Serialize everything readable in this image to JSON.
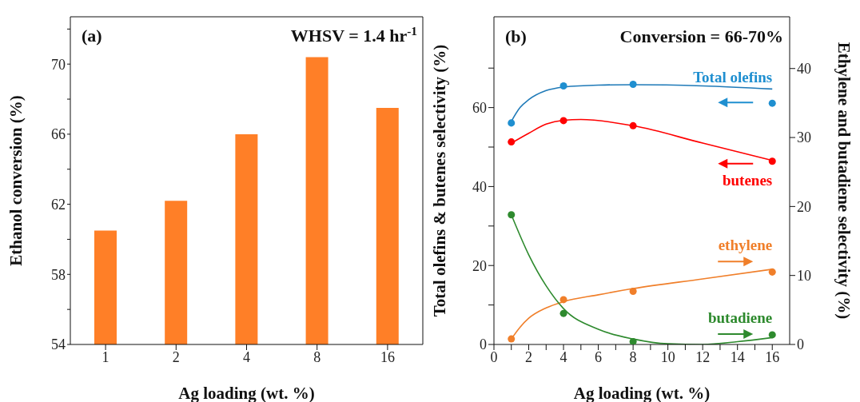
{
  "chart_data": [
    {
      "type": "bar",
      "annotations": [
        "(a)",
        "WHSV = 1.4 hr$^{-1}$"
      ],
      "xlabel": "Ag loading (wt. %)",
      "ylabel": "Ethanol conversion (%)",
      "categories": [
        "1",
        "2",
        "4",
        "8",
        "16"
      ],
      "values": [
        60.5,
        62.2,
        66.0,
        70.4,
        67.5
      ],
      "color": "#ff7f27",
      "ylim": [
        54,
        72.7
      ],
      "yticks": [
        54,
        {
          "value": 56,
          "label": null
        },
        58,
        {
          "value": 60,
          "label": null
        },
        62,
        {
          "value": 64,
          "label": null
        },
        66,
        {
          "value": 68,
          "label": null
        },
        70,
        {
          "value": 72,
          "label": null
        }
      ]
    },
    {
      "type": "scatter",
      "annotations": [
        "(b)",
        "Conversion = 66-70%"
      ],
      "xlabel": "Ag loading (wt. %)",
      "ylabel": "Total olefins & butenes selectivity (%)",
      "y2label": "Ethylene and butadiene selectivity (%)",
      "xlim": [
        0,
        17
      ],
      "xticks": [
        0,
        {
          "value": 1,
          "label": null
        },
        2,
        {
          "value": 3,
          "label": null
        },
        4,
        {
          "value": 5,
          "label": null
        },
        6,
        {
          "value": 7,
          "label": null
        },
        8,
        {
          "value": 9,
          "label": null
        },
        10,
        {
          "value": 11,
          "label": null
        },
        12,
        {
          "value": 13,
          "label": null
        },
        14,
        {
          "value": 15,
          "label": null
        },
        16
      ],
      "ylim": [
        0,
        83
      ],
      "yticks": [
        0,
        {
          "value": 10,
          "label": null
        },
        20,
        {
          "value": 30,
          "label": null
        },
        40,
        {
          "value": 50,
          "label": null
        },
        60,
        {
          "value": 70,
          "label": null
        }
      ],
      "y2lim": [
        0,
        47.5
      ],
      "y2ticks": [
        0,
        10,
        20,
        30,
        40
      ],
      "series": [
        {
          "name": "Total olefins",
          "color": "#1f8fd0",
          "x": [
            1,
            4,
            8,
            16
          ],
          "values": [
            56.1,
            65.5,
            65.9,
            61.1
          ],
          "marker": "circle"
        },
        {
          "name": "butenes",
          "color": "#ff0000",
          "x": [
            1,
            4,
            8,
            16
          ],
          "values": [
            51.3,
            56.7,
            55.4,
            46.4
          ],
          "marker": "circle"
        },
        {
          "name": "ethylene",
          "color": "#f07f2a",
          "axis": "y2",
          "x": [
            1,
            4,
            8,
            16
          ],
          "values": [
            0.8,
            6.5,
            7.7,
            10.5
          ],
          "marker": "circle"
        },
        {
          "name": "butadiene",
          "color": "#2e8a2e",
          "axis": "y2",
          "x": [
            1,
            4,
            8,
            16
          ],
          "values": [
            18.8,
            4.5,
            0.4,
            1.4
          ],
          "marker": "circle"
        },
        {
          "type": "line",
          "color": "#1f7ab8",
          "x": [
            1,
            1.5,
            2,
            3,
            4,
            6,
            8,
            12,
            16
          ],
          "values": [
            56.5,
            60,
            62,
            64.3,
            65.2,
            65.7,
            65.8,
            65.5,
            64.7
          ],
          "marker": "none"
        },
        {
          "type": "line",
          "color": "#ff0000",
          "x": [
            1,
            2,
            3,
            4,
            5,
            8,
            12,
            16
          ],
          "values": [
            51,
            53.5,
            55.8,
            56.8,
            57,
            55.4,
            51,
            46.6
          ],
          "marker": "none"
        },
        {
          "type": "line",
          "color": "#f07f2a",
          "axis": "y2",
          "x": [
            1,
            1.5,
            2,
            3,
            4,
            6,
            8,
            12,
            16
          ],
          "values": [
            0.8,
            2.5,
            3.8,
            5.3,
            6.2,
            7.2,
            8.1,
            9.5,
            10.9
          ],
          "marker": "none"
        },
        {
          "type": "line",
          "color": "#2e8a2e",
          "axis": "y2",
          "x": [
            1,
            2,
            3,
            4,
            6,
            8,
            10,
            12,
            14,
            16
          ],
          "values": [
            18.8,
            13,
            8.5,
            5.2,
            2.2,
            0.8,
            0.1,
            0,
            0.4,
            1.0
          ],
          "marker": "none"
        }
      ]
    }
  ]
}
